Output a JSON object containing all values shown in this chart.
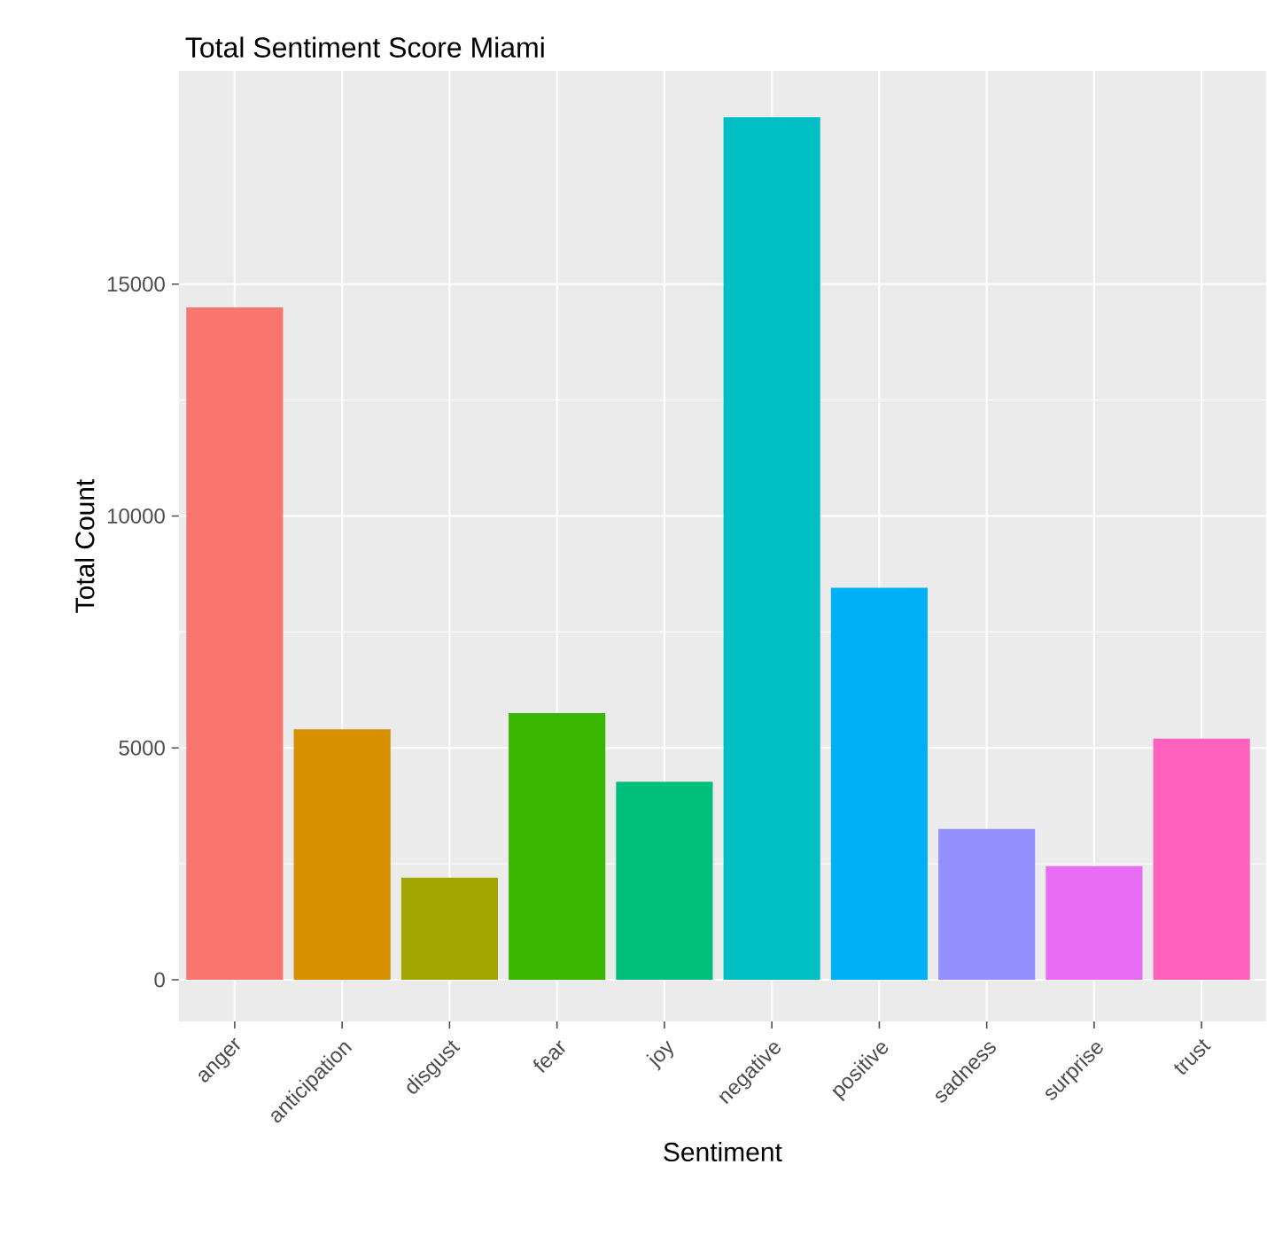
{
  "chart_data": {
    "type": "bar",
    "title": "Total Sentiment Score Miami",
    "xlabel": "Sentiment",
    "ylabel": "Total Count",
    "categories": [
      "anger",
      "anticipation",
      "disgust",
      "fear",
      "joy",
      "negative",
      "positive",
      "sadness",
      "surprise",
      "trust"
    ],
    "values": [
      14500,
      5400,
      2200,
      5750,
      4270,
      18600,
      8450,
      3250,
      2450,
      5200
    ],
    "colors": [
      "#F8766D",
      "#D89000",
      "#A3A500",
      "#39B600",
      "#00BF7D",
      "#00BFC4",
      "#00B0F6",
      "#9590FF",
      "#E76BF3",
      "#FF62BC"
    ],
    "ylim": [
      -900,
      19600
    ],
    "yticks": [
      0,
      5000,
      10000,
      15000
    ],
    "grid": true
  }
}
